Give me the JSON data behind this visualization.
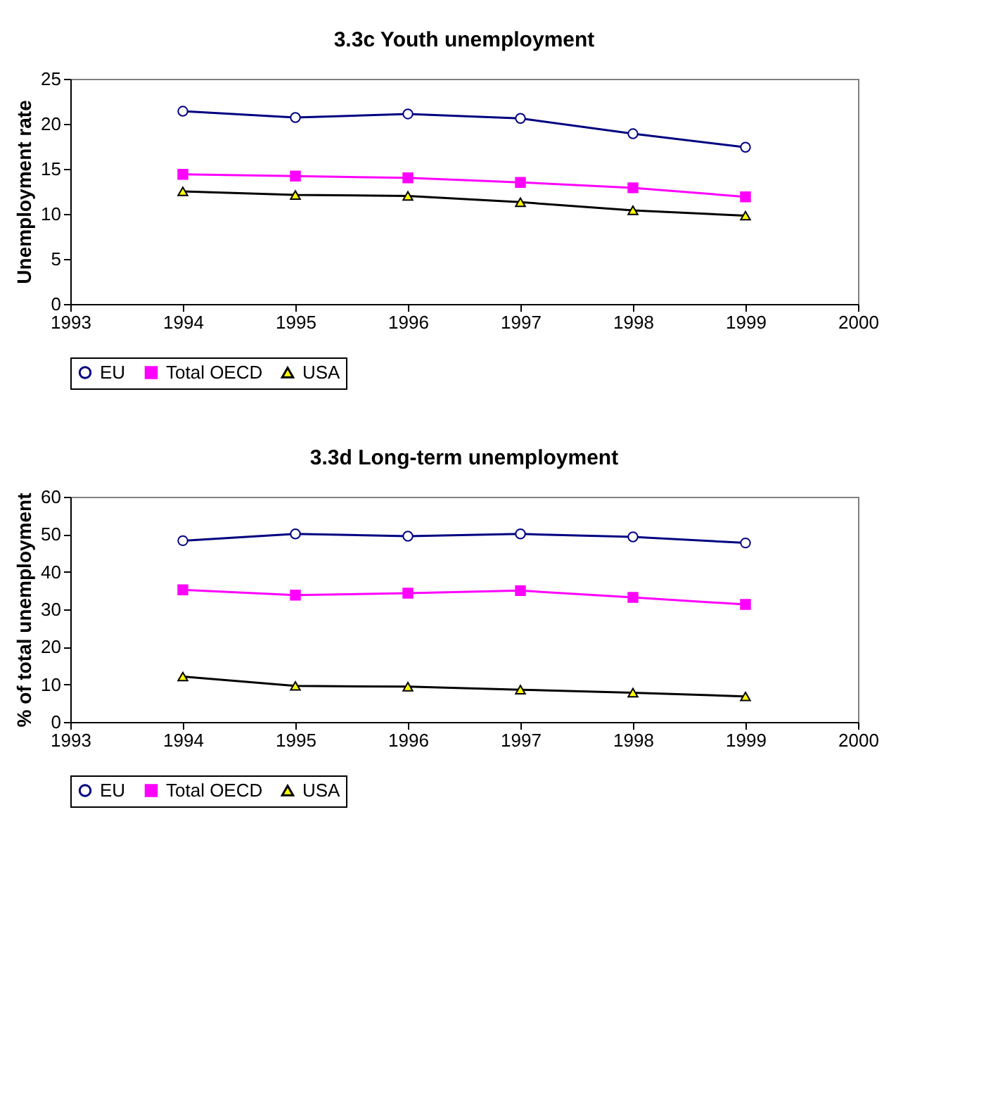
{
  "chart_data": [
    {
      "type": "line",
      "title": "3.3c Youth unemployment",
      "ylabel": "Unemployment rate",
      "x": [
        1994,
        1995,
        1996,
        1997,
        1998,
        1999
      ],
      "xlim": [
        1993,
        2000
      ],
      "xticks": [
        1993,
        1994,
        1995,
        1996,
        1997,
        1998,
        1999,
        2000
      ],
      "ylim": [
        0,
        25
      ],
      "yticks": [
        0,
        5,
        10,
        15,
        20,
        25
      ],
      "grid": false,
      "legend": "bottom",
      "series": [
        {
          "name": "EU",
          "color": "#000080",
          "marker": "circle",
          "values": [
            21.4,
            20.7,
            21.1,
            20.6,
            18.9,
            17.4
          ]
        },
        {
          "name": "Total OECD",
          "color": "#ff00ff",
          "marker": "square",
          "values": [
            14.4,
            14.2,
            14.0,
            13.5,
            12.9,
            11.9
          ]
        },
        {
          "name": "USA",
          "color": "#000000",
          "marker": "triangle",
          "values": [
            12.5,
            12.1,
            12.0,
            11.3,
            10.4,
            9.8
          ]
        }
      ]
    },
    {
      "type": "line",
      "title": "3.3d Long-term unemployment",
      "ylabel": "% of total unemployment",
      "x": [
        1994,
        1995,
        1996,
        1997,
        1998,
        1999
      ],
      "xlim": [
        1993,
        2000
      ],
      "xticks": [
        1993,
        1994,
        1995,
        1996,
        1997,
        1998,
        1999,
        2000
      ],
      "ylim": [
        0,
        60
      ],
      "yticks": [
        0,
        10,
        20,
        30,
        40,
        50,
        60
      ],
      "grid": false,
      "legend": "bottom",
      "series": [
        {
          "name": "EU",
          "color": "#000080",
          "marker": "circle",
          "values": [
            48.3,
            50.1,
            49.5,
            50.1,
            49.3,
            47.7
          ]
        },
        {
          "name": "Total OECD",
          "color": "#ff00ff",
          "marker": "square",
          "values": [
            35.2,
            33.8,
            34.3,
            35.0,
            33.2,
            31.3
          ]
        },
        {
          "name": "USA",
          "color": "#000000",
          "marker": "triangle",
          "values": [
            12.1,
            9.6,
            9.4,
            8.6,
            7.8,
            6.8
          ]
        }
      ]
    }
  ]
}
